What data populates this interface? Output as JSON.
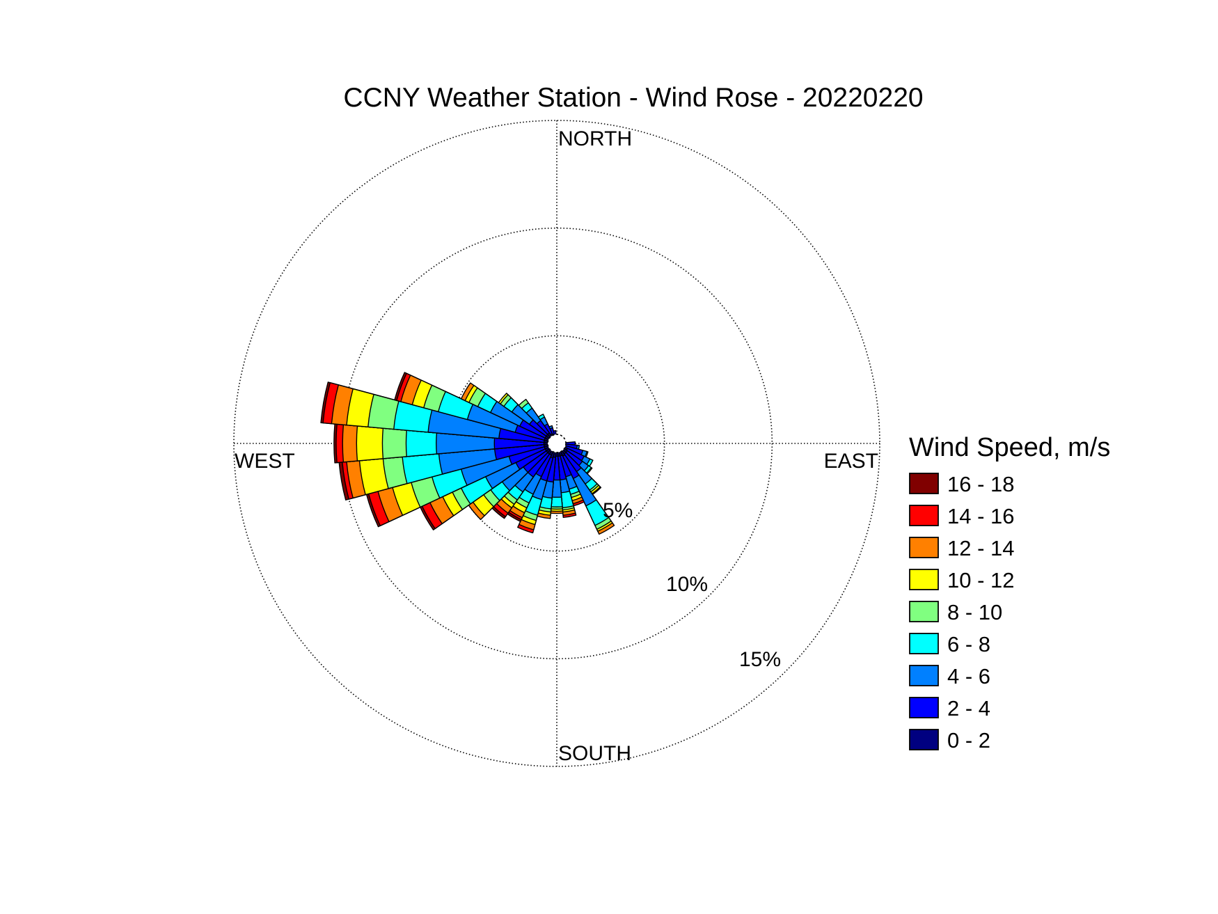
{
  "chart_data": {
    "type": "windrose",
    "title": "CCNY Weather Station - Wind Rose - 20220220",
    "direction_labels": {
      "north": "NORTH",
      "east": "EAST",
      "south": "SOUTH",
      "west": "WEST"
    },
    "radial_ticks": [
      {
        "value": 5,
        "label": "5%"
      },
      {
        "value": 10,
        "label": "10%"
      },
      {
        "value": 15,
        "label": "15%"
      }
    ],
    "radial_max": 15,
    "grid": true,
    "legend": {
      "title": "Wind Speed, m/s",
      "placement": "right",
      "order": "top-to-bottom, highest speed first"
    },
    "bins": [
      {
        "label": "0 - 2",
        "color": "#000080"
      },
      {
        "label": "2 - 4",
        "color": "#0000ff"
      },
      {
        "label": "4 - 6",
        "color": "#0080ff"
      },
      {
        "label": "6 - 8",
        "color": "#00ffff"
      },
      {
        "label": "8 - 10",
        "color": "#80ff80"
      },
      {
        "label": "10 - 12",
        "color": "#ffff00"
      },
      {
        "label": "12 - 14",
        "color": "#ff8000"
      },
      {
        "label": "14 - 16",
        "color": "#ff0000"
      },
      {
        "label": "16 - 18",
        "color": "#800000"
      }
    ],
    "sector_width_deg": 10,
    "calm_circle": true,
    "sectors": [
      {
        "dir": 90,
        "cum": [
          0.4,
          0.85
        ]
      },
      {
        "dir": 100,
        "cum": [
          0.4,
          0.95,
          1.05
        ]
      },
      {
        "dir": 110,
        "cum": [
          0.45,
          1.25,
          1.45,
          1.5
        ]
      },
      {
        "dir": 120,
        "cum": [
          0.55,
          1.4,
          1.7,
          1.85
        ]
      },
      {
        "dir": 130,
        "cum": [
          0.6,
          1.45,
          1.8,
          1.95,
          2.0
        ]
      },
      {
        "dir": 140,
        "cum": [
          0.6,
          1.6,
          2.3,
          2.65,
          2.75,
          2.85,
          2.9
        ]
      },
      {
        "dir": 150,
        "cum": [
          0.65,
          1.8,
          3.2,
          4.2,
          4.4,
          4.5,
          4.65
        ]
      },
      {
        "dir": 160,
        "cum": [
          0.6,
          1.6,
          2.2,
          2.45,
          2.6,
          2.75,
          2.9,
          3.0
        ]
      },
      {
        "dir": 170,
        "cum": [
          0.6,
          1.7,
          2.3,
          3.0,
          3.1,
          3.2,
          3.35,
          3.45
        ]
      },
      {
        "dir": 180,
        "cum": [
          0.6,
          1.7,
          2.5,
          2.95,
          3.05,
          3.15,
          3.25
        ]
      },
      {
        "dir": 190,
        "cum": [
          0.65,
          1.8,
          2.55,
          3.05,
          3.2,
          3.35,
          3.5
        ]
      },
      {
        "dir": 200,
        "cum": [
          0.7,
          1.8,
          2.7,
          3.45,
          3.7,
          3.9,
          4.15,
          4.3
        ]
      },
      {
        "dir": 210,
        "cum": [
          0.6,
          1.7,
          2.6,
          3.05,
          3.3,
          3.55,
          3.8,
          3.9,
          4.0
        ]
      },
      {
        "dir": 220,
        "cum": [
          0.6,
          1.9,
          2.75,
          3.2,
          3.45,
          3.65,
          3.95,
          4.15,
          4.25
        ]
      },
      {
        "dir": 230,
        "cum": [
          0.6,
          1.9,
          3.1,
          3.75,
          4.15,
          4.75,
          5.0
        ]
      },
      {
        "dir": 240,
        "cum": [
          0.6,
          2.1,
          3.65,
          4.9,
          5.35,
          5.85,
          6.5,
          6.9,
          7.0
        ]
      },
      {
        "dir": 250,
        "cum": [
          0.6,
          2.3,
          4.6,
          6.0,
          7.0,
          7.9,
          8.6,
          9.05,
          9.15
        ]
      },
      {
        "dir": 260,
        "cum": [
          0.6,
          2.9,
          5.5,
          7.2,
          8.1,
          9.2,
          9.8,
          10.0,
          10.15
        ]
      },
      {
        "dir": 270,
        "cum": [
          0.6,
          2.9,
          5.6,
          7.0,
          8.1,
          9.3,
          9.95,
          10.25,
          10.35
        ]
      },
      {
        "dir": 280,
        "cum": [
          0.6,
          2.7,
          6.0,
          7.6,
          8.8,
          9.8,
          10.5,
          10.9,
          11.0
        ]
      },
      {
        "dir": 290,
        "cum": [
          0.6,
          2.0,
          4.3,
          5.7,
          6.4,
          6.95,
          7.5,
          7.7,
          7.8
        ]
      },
      {
        "dir": 300,
        "cum": [
          0.6,
          1.9,
          3.4,
          4.05,
          4.5,
          4.7,
          4.9
        ]
      },
      {
        "dir": 310,
        "cum": [
          0.6,
          1.55,
          2.55,
          3.0,
          3.2,
          3.3
        ]
      },
      {
        "dir": 320,
        "cum": [
          0.6,
          1.3,
          2.0,
          2.3,
          2.5
        ]
      },
      {
        "dir": 330,
        "cum": [
          0.5,
          1.0,
          1.35,
          1.5
        ]
      },
      {
        "dir": 340,
        "cum": [
          0.45,
          0.75,
          0.85
        ]
      },
      {
        "dir": 350,
        "cum": [
          0.4,
          0.6
        ]
      }
    ]
  }
}
